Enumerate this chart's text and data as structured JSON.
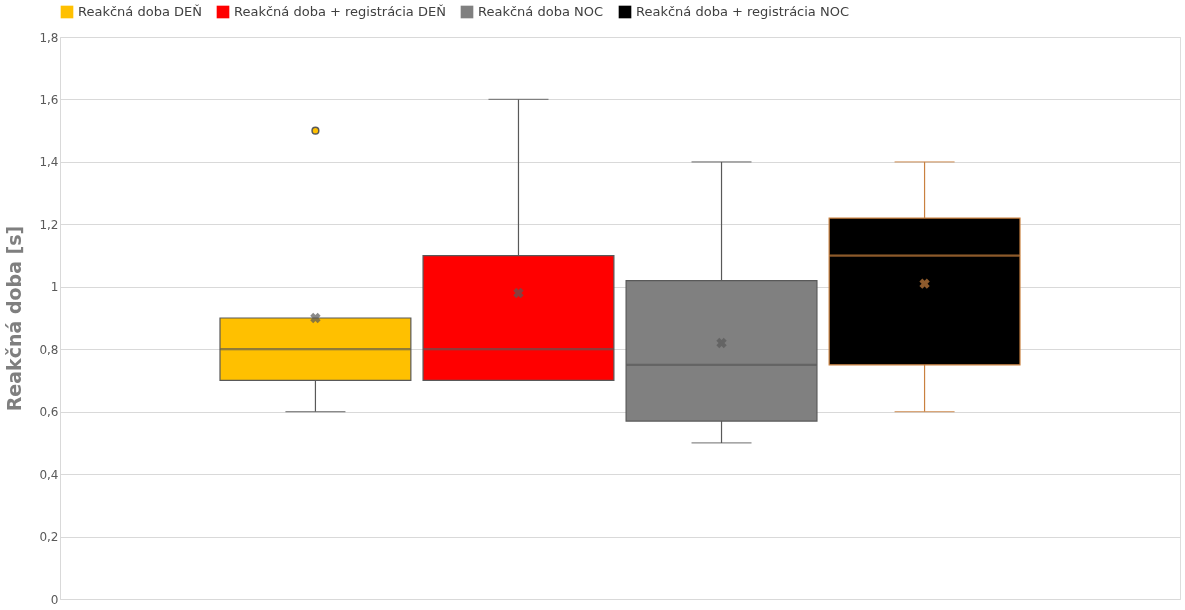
{
  "chart_data": {
    "type": "box",
    "ylabel": "Reakčná doba [s]",
    "categories": [
      null
    ],
    "ylim": [
      0,
      1.8
    ],
    "yticks": [
      0,
      {
        "value": 0.2,
        "label": "0,2"
      },
      {
        "value": 0.4,
        "label": "0,4"
      },
      {
        "value": 0.6,
        "label": "0,6"
      },
      {
        "value": 0.8,
        "label": "0,8"
      },
      1,
      {
        "value": 1.2,
        "label": "1,2"
      },
      {
        "value": 1.4,
        "label": "1,4"
      },
      {
        "value": 1.6,
        "label": "1,6"
      },
      {
        "value": 1.8,
        "label": "1,8"
      }
    ],
    "grid": "y",
    "legend": "top",
    "tick_labels": "y",
    "series": [
      {
        "name": "Reakčná doba DEŇ",
        "color": "#ffc000",
        "boxes": [
          {
            "low": 0.6,
            "q1": 0.7,
            "median": 0.8,
            "q3": 0.9,
            "high": 0.9,
            "mean": 0.9,
            "outliers": [
              1.5
            ]
          }
        ]
      },
      {
        "name": "Reakčná doba + registrácia DEŇ",
        "color": "#ff0000",
        "boxes": [
          {
            "low": 0.7,
            "q1": 0.7,
            "median": 0.8,
            "q3": 1.1,
            "high": 1.6,
            "mean": 0.98
          }
        ]
      },
      {
        "name": "Reakčná doba NOC",
        "color": "#808080",
        "boxes": [
          {
            "low": 0.5,
            "q1": 0.57,
            "median": 0.75,
            "q3": 1.02,
            "high": 1.4,
            "mean": 0.82
          }
        ]
      },
      {
        "name": "Reakčná doba + registrácia NOC",
        "color": "#000000",
        "boxes": [
          {
            "low": 0.6,
            "q1": 0.75,
            "median": 1.1,
            "q3": 1.22,
            "high": 1.4,
            "mean": 1.01
          }
        ]
      }
    ]
  }
}
